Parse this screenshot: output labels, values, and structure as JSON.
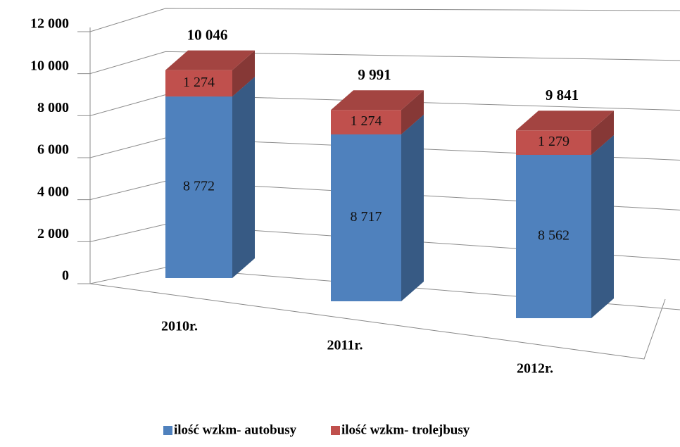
{
  "chart_data": {
    "type": "bar3d_stacked",
    "categories": [
      "2010r.",
      "2011r.",
      "2012r."
    ],
    "series": [
      {
        "name": "ilość wzkm- autobusy",
        "color": "#4f81bd",
        "values": [
          8772,
          8717,
          8562
        ],
        "value_labels": [
          "8 772",
          "8 717",
          "8 562"
        ]
      },
      {
        "name": "ilość wzkm- trolejbusy",
        "color": "#c0504d",
        "values": [
          1274,
          1274,
          1279
        ],
        "value_labels": [
          "1 274",
          "1 274",
          "1 279"
        ]
      }
    ],
    "totals": [
      10046,
      9991,
      9841
    ],
    "total_labels": [
      "10 046",
      "9 991",
      "9 841"
    ],
    "ylim": [
      0,
      12000
    ],
    "yticks": [
      0,
      {
        "value": 2000,
        "label": "2 000"
      },
      {
        "value": 4000,
        "label": "4 000"
      },
      {
        "value": 6000,
        "label": "6 000"
      },
      {
        "value": 8000,
        "label": "8 000"
      },
      {
        "value": 10000,
        "label": "10 000"
      },
      {
        "value": 12000,
        "label": "12 000"
      }
    ],
    "grid": true,
    "legend": "bottom"
  }
}
